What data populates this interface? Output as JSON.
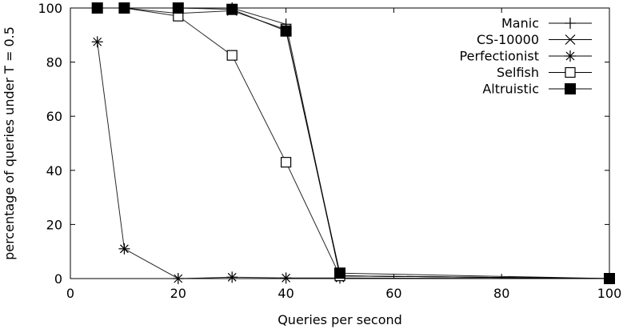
{
  "chart_data": {
    "type": "line",
    "title": "",
    "xlabel": "Queries per second",
    "ylabel": "percentage of queries under T = 0.5",
    "xlim": [
      0,
      100
    ],
    "ylim": [
      0,
      100
    ],
    "xticks": [
      0,
      20,
      40,
      60,
      80,
      100
    ],
    "yticks": [
      0,
      20,
      40,
      60,
      80,
      100
    ],
    "grid": false,
    "legend_position": "top-right",
    "series": [
      {
        "name": "Manic",
        "marker": "plus",
        "points": [
          [
            5,
            100
          ],
          [
            10,
            100
          ],
          [
            20,
            100
          ],
          [
            30,
            100
          ],
          [
            40,
            94
          ],
          [
            50,
            1
          ],
          [
            100,
            0
          ]
        ]
      },
      {
        "name": "CS-10000",
        "marker": "cross",
        "points": [
          [
            5,
            100
          ],
          [
            10,
            100
          ],
          [
            20,
            98
          ],
          [
            30,
            99
          ],
          [
            40,
            92
          ],
          [
            50,
            1
          ],
          [
            100,
            0
          ]
        ]
      },
      {
        "name": "Perfectionist",
        "marker": "star",
        "points": [
          [
            5,
            87.5
          ],
          [
            10,
            11
          ],
          [
            20,
            0
          ],
          [
            30,
            0.5
          ],
          [
            40,
            0.2
          ],
          [
            50,
            0.2
          ],
          [
            100,
            0
          ]
        ]
      },
      {
        "name": "Selfish",
        "marker": "open-square",
        "points": [
          [
            5,
            100
          ],
          [
            10,
            100
          ],
          [
            20,
            97
          ],
          [
            30,
            82.5
          ],
          [
            40,
            43
          ],
          [
            50,
            1
          ],
          [
            100,
            0
          ]
        ]
      },
      {
        "name": "Altruistic",
        "marker": "filled-square",
        "points": [
          [
            5,
            100
          ],
          [
            10,
            100
          ],
          [
            20,
            100
          ],
          [
            30,
            99.5
          ],
          [
            40,
            91.5
          ],
          [
            50,
            2
          ],
          [
            100,
            0
          ]
        ]
      }
    ]
  }
}
